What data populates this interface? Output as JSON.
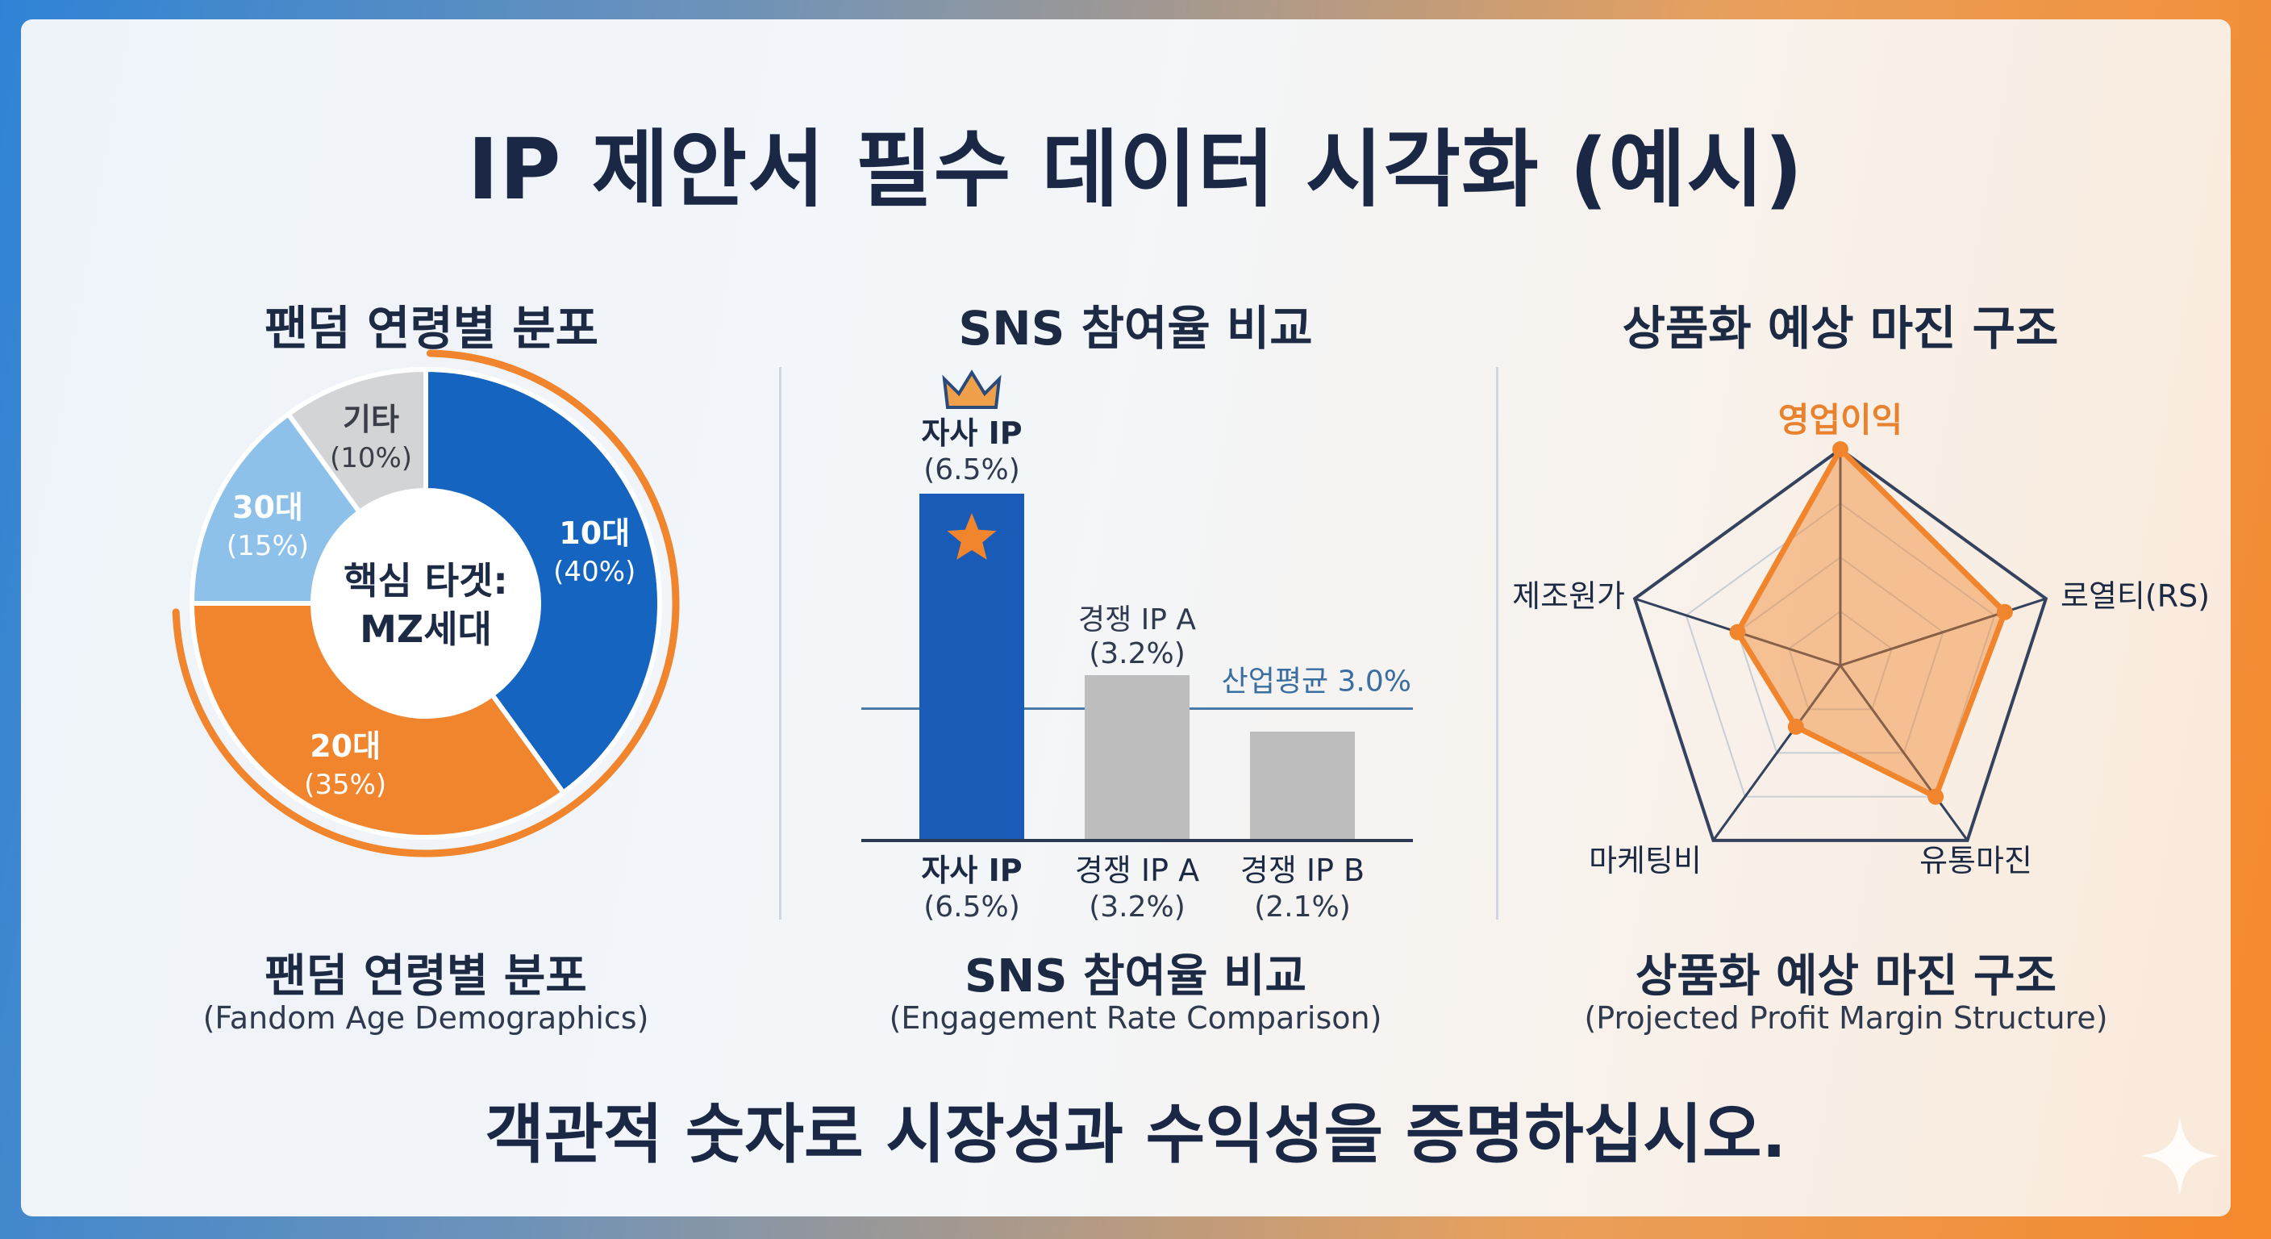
{
  "title": "IP 제안서 필수 데이터 시각화 (예시)",
  "footer": "객관적 숫자로 시장성과 수익성을 증명하십시오.",
  "panels": [
    {
      "title": "팬덤 연령별 분포",
      "caption": "팬덤 연령별 분포",
      "caption_sub": "(Fandom Age Demographics)"
    },
    {
      "title": "SNS 참여율 비교",
      "caption": "SNS 참여율 비교",
      "caption_sub": "(Engagement Rate Comparison)"
    },
    {
      "title": "상품화 예상 마진 구조",
      "caption": "상품화 예상 마진 구조",
      "caption_sub": "(Projected Profit Margin Structure)"
    }
  ],
  "chart_data": [
    {
      "type": "pie",
      "title": "팬덤 연령별 분포",
      "center_label": [
        "핵심 타겟:",
        "MZ세대"
      ],
      "slices": [
        {
          "label": "10대",
          "value": 40,
          "value_label": "(40%)",
          "color": "#1565c0",
          "highlight": true
        },
        {
          "label": "20대",
          "value": 35,
          "value_label": "(35%)",
          "color": "#f0852d",
          "highlight": true
        },
        {
          "label": "30대",
          "value": 15,
          "value_label": "(15%)",
          "color": "#8ec1ea"
        },
        {
          "label": "기타",
          "value": 10,
          "value_label": "(10%)",
          "color": "#d2d4d6"
        }
      ],
      "highlight_color": "#f0852d"
    },
    {
      "type": "bar",
      "title": "SNS 참여율 비교",
      "categories": [
        "자사 IP",
        "경쟁 IP A",
        "경쟁 IP B"
      ],
      "values": [
        6.5,
        3.2,
        2.1
      ],
      "value_labels": [
        "(6.5%)",
        "(3.2%)",
        "(2.1%)"
      ],
      "top_labels": [
        {
          "name": "자사 IP",
          "value": "(6.5%)"
        },
        {
          "name": "경쟁 IP A",
          "value": "(3.2%)"
        }
      ],
      "colors": [
        "#1a5bb8",
        "#bdbdbd",
        "#bdbdbd"
      ],
      "reference_line": {
        "label": "산업평균 3.0%",
        "value": 3.0,
        "color": "#4a7ba8"
      },
      "ylim": [
        0,
        8
      ],
      "markers": [
        "crown-icon",
        "star-icon"
      ]
    },
    {
      "type": "radar",
      "title": "상품화 예상 마진 구조",
      "axes": [
        "영업이익",
        "로열티(RS)",
        "유통마진",
        "마케팅비",
        "제조원가"
      ],
      "values": [
        1.0,
        0.8,
        0.75,
        0.35,
        0.5
      ],
      "rings": 4,
      "highlight_axis": "영업이익",
      "fill_color": "#f0852d"
    }
  ]
}
